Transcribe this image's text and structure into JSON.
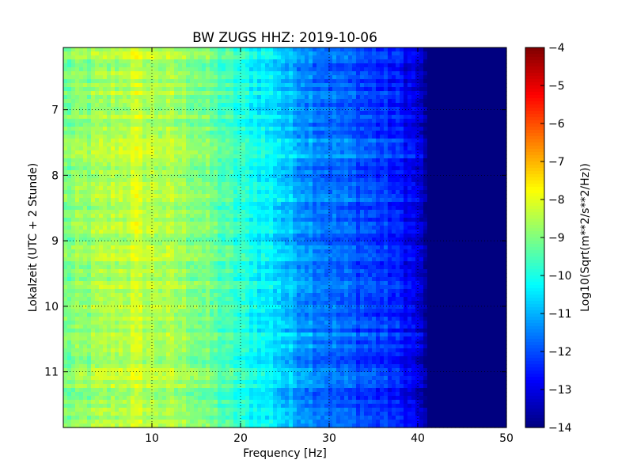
{
  "chart_data": {
    "type": "heatmap",
    "title": "BW ZUGS HHZ: 2019-10-06",
    "xlabel": "Frequency [Hz]",
    "ylabel": "Lokalzeit (UTC + 2 Stunde)",
    "xlim": [
      0,
      50
    ],
    "ylim": [
      11.85,
      6.05
    ],
    "y_inverted": true,
    "xticks": [
      10,
      20,
      30,
      40,
      50
    ],
    "yticks": [
      7,
      8,
      9,
      10,
      11
    ],
    "grid": "dotted",
    "colormap": "jet",
    "colorbar": {
      "label": "Log10(Sqrt(m**2/s**2/Hz))",
      "range": [
        -14,
        -4
      ],
      "ticks": [
        -4,
        -5,
        -6,
        -7,
        -8,
        -9,
        -10,
        -11,
        -12,
        -13,
        -14
      ]
    },
    "approx_level_by_frequency": {
      "frequency_hz": [
        0,
        5,
        8,
        10,
        12,
        15,
        20,
        24,
        25,
        28,
        30,
        33,
        35,
        38,
        40,
        41,
        50
      ],
      "log10_amplitude": [
        -9.1,
        -8.6,
        -8.3,
        -8.5,
        -8.6,
        -8.9,
        -9.9,
        -10.5,
        -10.9,
        -11.4,
        -11.7,
        -12.0,
        -12.2,
        -12.6,
        -13.1,
        -14.0,
        -14.0
      ]
    }
  }
}
